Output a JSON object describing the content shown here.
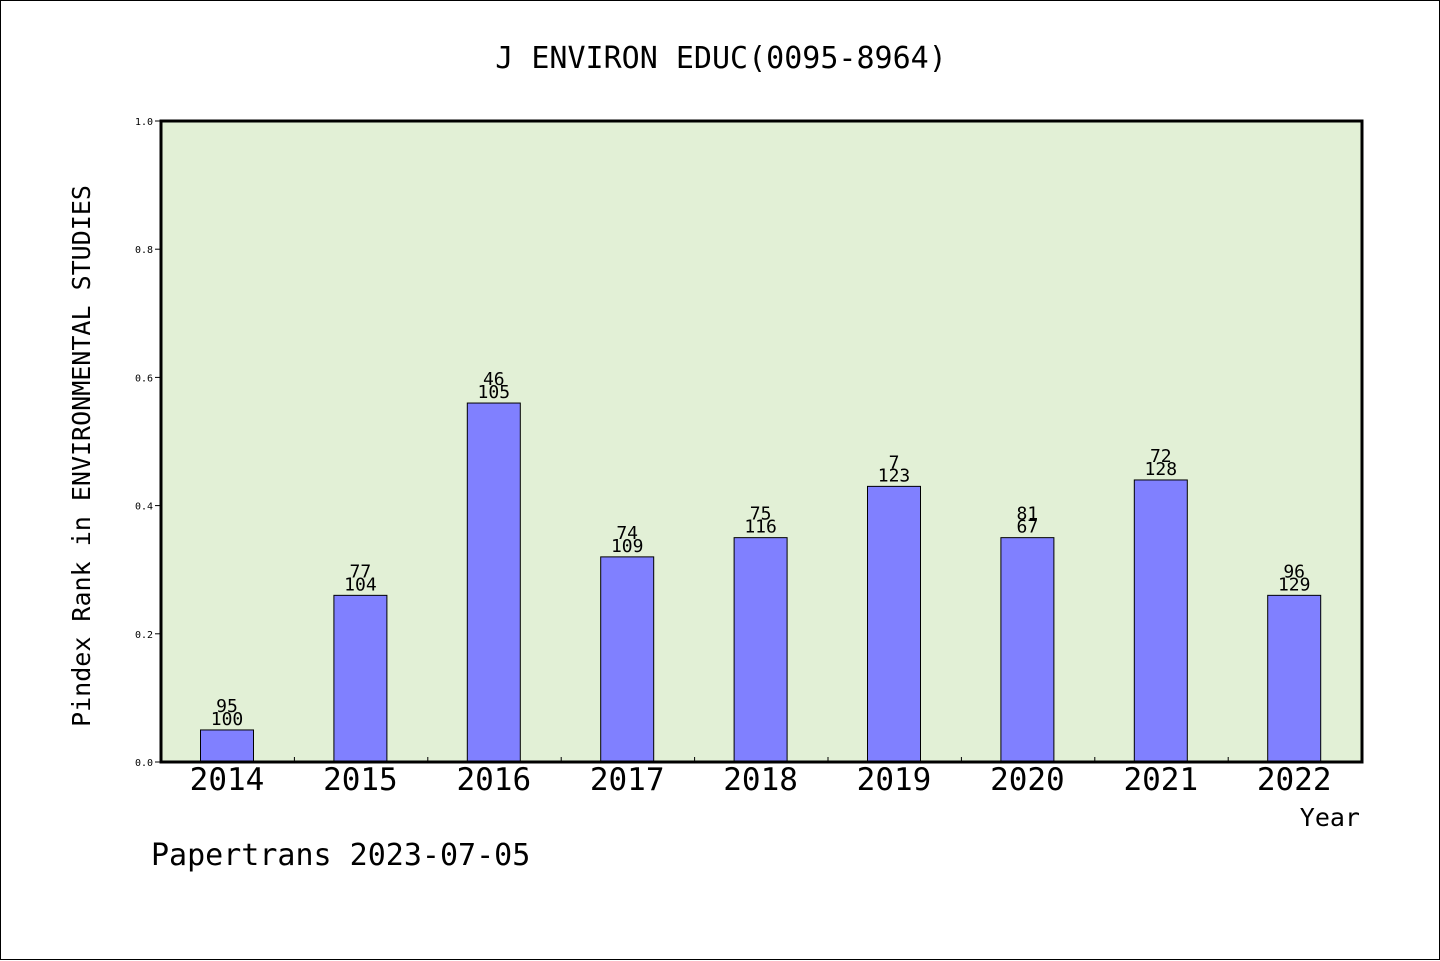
{
  "chart_data": {
    "type": "bar",
    "title": "J ENVIRON EDUC(0095-8964)",
    "ylabel": "Pindex Rank in ENVIRONMENTAL STUDIES",
    "xlabel": "Year",
    "categories": [
      "2014",
      "2015",
      "2016",
      "2017",
      "2018",
      "2019",
      "2020",
      "2021",
      "2022"
    ],
    "values": [
      0.05,
      0.26,
      0.56,
      0.32,
      0.35,
      0.43,
      0.35,
      0.44,
      0.26
    ],
    "label_top": [
      "95",
      "77",
      "46",
      "74",
      "75",
      "7",
      "81",
      "72",
      "96"
    ],
    "label_bottom": [
      "100",
      "104",
      "105",
      "109",
      "116",
      "123",
      "67",
      "128",
      "129"
    ],
    "ylim": [
      0,
      1.0
    ],
    "yticks": [
      "0.0",
      "0.2",
      "0.4",
      "0.6",
      "0.8",
      "1.0"
    ],
    "grid": false,
    "colors": {
      "plot_bg": "#e2f0d6",
      "bar_fill": "#8080ff",
      "bar_stroke": "#000000"
    }
  },
  "footer": {
    "credit": "Papertrans 2023-07-05"
  }
}
